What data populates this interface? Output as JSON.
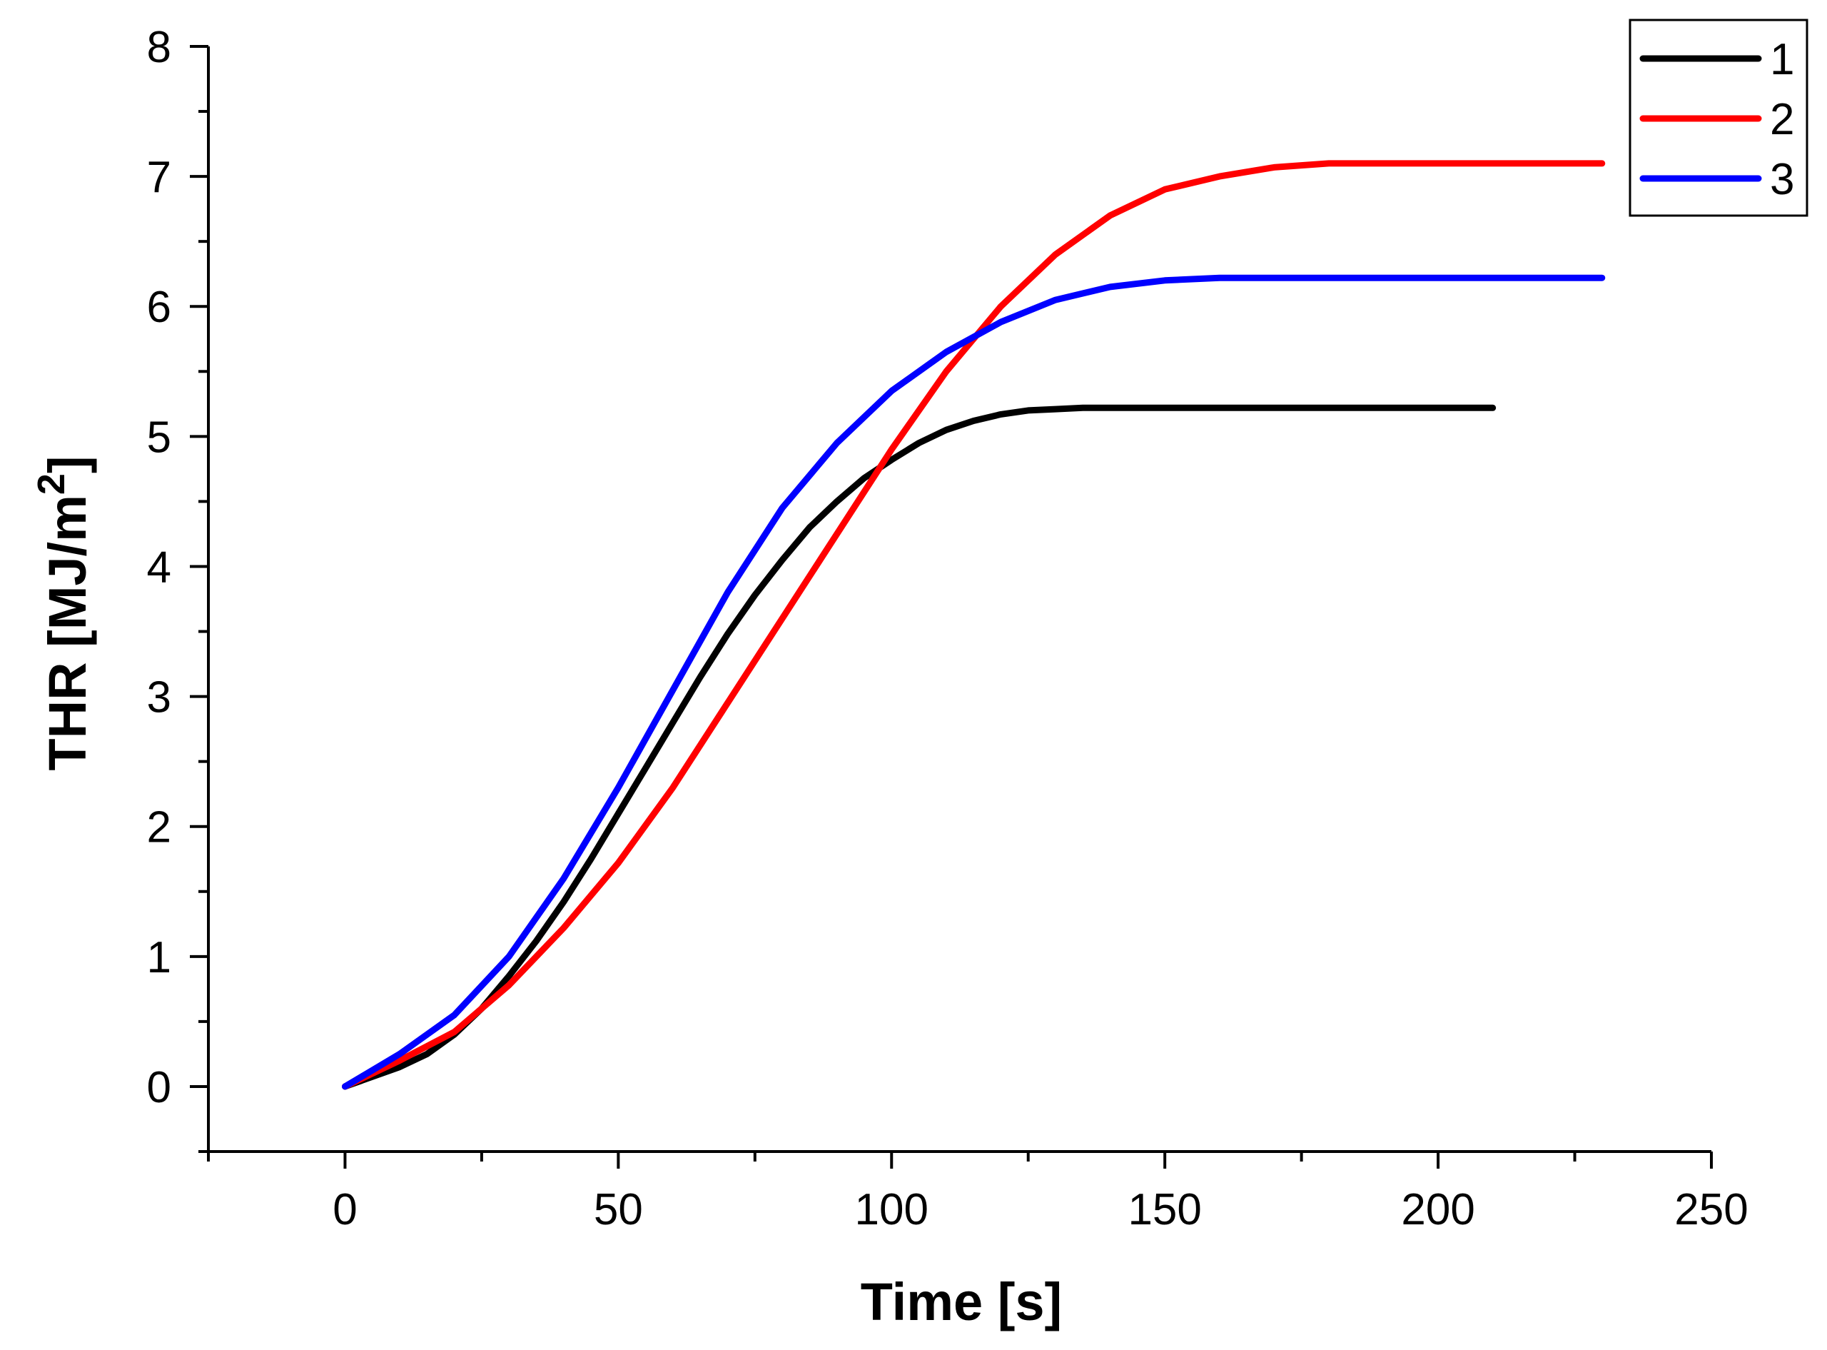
{
  "chart_data": {
    "type": "line",
    "title": "",
    "xlabel": "Time [s]",
    "ylabel_main": "THR [MJ/m",
    "ylabel_sup": "2",
    "ylabel_close": "]",
    "xlim": [
      -25,
      250
    ],
    "ylim": [
      -0.5,
      8
    ],
    "xticks": [
      0,
      50,
      100,
      150,
      200,
      250
    ],
    "yticks": [
      0,
      1,
      2,
      3,
      4,
      5,
      6,
      7,
      8
    ],
    "xtick_labels": [
      "0",
      "50",
      "100",
      "150",
      "200",
      "250"
    ],
    "ytick_labels": [
      "0",
      "1",
      "2",
      "3",
      "4",
      "5",
      "6",
      "7",
      "8"
    ],
    "legend_position": "top-right",
    "series": [
      {
        "name": "1",
        "color": "#000000",
        "x": [
          0,
          10,
          15,
          20,
          25,
          30,
          35,
          40,
          45,
          50,
          55,
          60,
          65,
          70,
          75,
          80,
          85,
          90,
          95,
          100,
          105,
          110,
          115,
          120,
          125,
          130,
          135,
          140,
          150,
          160,
          180,
          200,
          210
        ],
        "y": [
          0,
          0.15,
          0.25,
          0.4,
          0.6,
          0.85,
          1.12,
          1.42,
          1.75,
          2.1,
          2.45,
          2.8,
          3.15,
          3.48,
          3.78,
          4.05,
          4.3,
          4.5,
          4.68,
          4.82,
          4.95,
          5.05,
          5.12,
          5.17,
          5.2,
          5.21,
          5.22,
          5.22,
          5.22,
          5.22,
          5.22,
          5.22,
          5.22
        ]
      },
      {
        "name": "2",
        "color": "#ff0000",
        "x": [
          0,
          10,
          20,
          30,
          40,
          50,
          60,
          70,
          80,
          90,
          100,
          110,
          120,
          130,
          140,
          150,
          160,
          170,
          180,
          190,
          200,
          210,
          220,
          230
        ],
        "y": [
          0,
          0.2,
          0.42,
          0.78,
          1.22,
          1.72,
          2.3,
          2.95,
          3.6,
          4.25,
          4.9,
          5.5,
          6.0,
          6.4,
          6.7,
          6.9,
          7.0,
          7.07,
          7.1,
          7.1,
          7.1,
          7.1,
          7.1,
          7.1
        ]
      },
      {
        "name": "3",
        "color": "#0000ff",
        "x": [
          0,
          10,
          20,
          30,
          40,
          50,
          60,
          70,
          80,
          90,
          100,
          110,
          120,
          130,
          140,
          150,
          160,
          170,
          180,
          190,
          200,
          210,
          220,
          230
        ],
        "y": [
          0,
          0.25,
          0.55,
          1.0,
          1.6,
          2.3,
          3.05,
          3.8,
          4.45,
          4.95,
          5.35,
          5.65,
          5.88,
          6.05,
          6.15,
          6.2,
          6.22,
          6.22,
          6.22,
          6.22,
          6.22,
          6.22,
          6.22,
          6.22
        ]
      }
    ]
  }
}
